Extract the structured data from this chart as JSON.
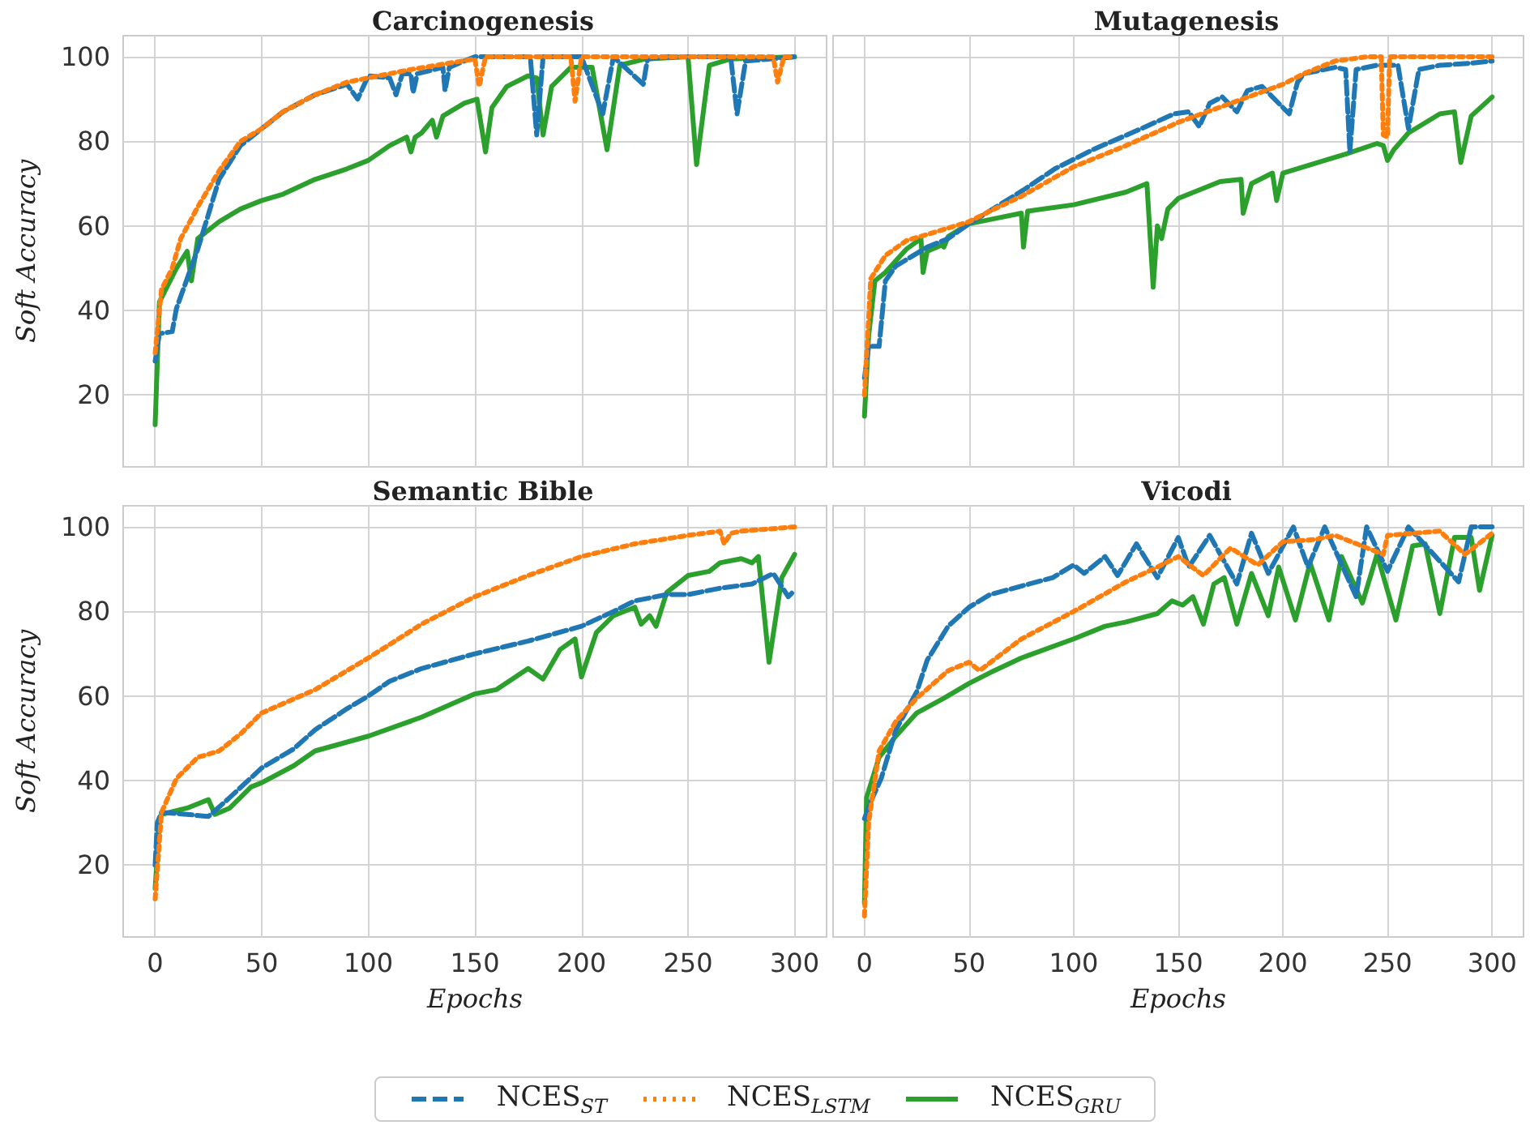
{
  "chart_data": [
    {
      "type": "line",
      "title": "Carcinogenesis",
      "ylabel": "Soft Accuracy",
      "xlim": [
        -15,
        315
      ],
      "ylim": [
        3,
        105
      ],
      "xticks": [
        0,
        50,
        100,
        150,
        200,
        250,
        300
      ],
      "yticks": [
        20,
        40,
        60,
        80,
        100
      ],
      "grid": true,
      "legend": "bottom",
      "tick_labels": "y",
      "series": [
        {
          "name": "NCES$_{ST}$",
          "color": "#1f77b4",
          "line_style": "dashed",
          "x": [
            0,
            2,
            8,
            10,
            20,
            30,
            40,
            50,
            60,
            75,
            90,
            95,
            100,
            110,
            113,
            116,
            120,
            121,
            123,
            135,
            136,
            138,
            145,
            150,
            176,
            179,
            182,
            200,
            210,
            215,
            229,
            231,
            240,
            270,
            273,
            277,
            300
          ],
          "values": [
            28,
            34.5,
            35,
            40.5,
            54.5,
            71,
            79,
            83,
            87,
            91,
            93.5,
            90,
            95.5,
            95,
            91,
            96,
            96,
            91.5,
            96,
            97.5,
            92,
            97.5,
            99,
            100,
            100,
            81.5,
            100,
            100,
            86.5,
            100,
            93.5,
            99.5,
            100,
            100,
            86.5,
            99,
            100
          ]
        },
        {
          "name": "NCES$_{LSTM}$",
          "color": "#ff7f0e",
          "line_style": "dotted",
          "x": [
            0,
            3,
            8,
            12,
            20,
            30,
            40,
            50,
            60,
            75,
            90,
            100,
            120,
            150,
            152,
            155,
            195,
            197,
            200,
            290,
            292,
            295,
            300
          ],
          "values": [
            30,
            45,
            50,
            57,
            64.5,
            73,
            80,
            83,
            87,
            91,
            94,
            95,
            97,
            99.5,
            93,
            100,
            100,
            89.5,
            100,
            100,
            94,
            100,
            100
          ]
        },
        {
          "name": "NCES$_{GRU}$",
          "color": "#2ca02c",
          "line_style": "solid",
          "x": [
            0,
            2,
            5,
            10,
            15,
            17,
            20,
            30,
            40,
            50,
            60,
            75,
            90,
            100,
            110,
            118,
            120,
            122,
            125,
            130,
            132,
            135,
            145,
            151,
            155,
            158,
            165,
            175,
            179,
            182,
            186,
            195,
            205,
            212,
            218,
            230,
            250,
            254,
            260,
            270,
            300
          ],
          "values": [
            13,
            42,
            45,
            50,
            54,
            47,
            57,
            61,
            64,
            66,
            67.5,
            71,
            73.5,
            75.5,
            79,
            81,
            77.5,
            81,
            82,
            85,
            81,
            86,
            89,
            90,
            77.5,
            88,
            93,
            95.5,
            95,
            81.5,
            93,
            97.5,
            97.5,
            78,
            98,
            99.5,
            100,
            74.5,
            98,
            99.5,
            100
          ]
        }
      ]
    },
    {
      "type": "line",
      "title": "Mutagenesis",
      "xlim": [
        -15,
        315
      ],
      "ylim": [
        3,
        105
      ],
      "xticks": [
        0,
        50,
        100,
        150,
        200,
        250,
        300
      ],
      "yticks": [
        20,
        40,
        60,
        80,
        100
      ],
      "grid": true,
      "tick_labels": false,
      "series": [
        {
          "color": "#1f77b4",
          "line_style": "dashed",
          "x": [
            0,
            2,
            7,
            10,
            15,
            30,
            40,
            50,
            76,
            91,
            109,
            130,
            148,
            155,
            160,
            165,
            171,
            178,
            183,
            190,
            203,
            207,
            210,
            225,
            230,
            232,
            235,
            245,
            255,
            260,
            265,
            275,
            290,
            300
          ],
          "values": [
            24,
            31.5,
            31.5,
            47,
            50.5,
            55,
            57,
            60.5,
            68.5,
            73.5,
            78,
            82.5,
            86.5,
            87,
            83.5,
            89,
            90.5,
            87,
            92,
            93,
            86.5,
            94,
            96,
            97.5,
            97,
            77.5,
            97,
            98,
            98,
            83,
            97,
            98,
            98.5,
            99
          ]
        },
        {
          "color": "#ff7f0e",
          "line_style": "dotted",
          "x": [
            0,
            3,
            10,
            20,
            30,
            50,
            60,
            75,
            100,
            125,
            150,
            175,
            200,
            210,
            225,
            240,
            247,
            248,
            250,
            251,
            300
          ],
          "values": [
            20,
            47.5,
            53,
            56.5,
            58,
            61,
            63.5,
            67,
            74,
            79,
            84.5,
            89,
            93.5,
            96,
            99,
            100,
            100,
            81.5,
            81,
            100,
            100
          ]
        },
        {
          "color": "#2ca02c",
          "line_style": "solid",
          "x": [
            0,
            2,
            5,
            10,
            20,
            27,
            28,
            30,
            37,
            38,
            40,
            50,
            60,
            75,
            76,
            78,
            100,
            125,
            135,
            138,
            140,
            142,
            145,
            150,
            170,
            180,
            181,
            185,
            195,
            197,
            200,
            220,
            230,
            245,
            248,
            250,
            253,
            260,
            275,
            282,
            285,
            290,
            300
          ],
          "values": [
            15,
            34,
            47,
            49,
            54.5,
            57,
            49,
            54,
            55.5,
            55,
            57.5,
            60.5,
            61.5,
            63,
            55,
            63.5,
            65,
            68,
            70,
            45.5,
            60,
            57,
            64,
            66.5,
            70.5,
            71,
            63,
            70,
            72.5,
            66,
            72.5,
            75.5,
            77,
            79.5,
            79,
            75.5,
            78,
            82,
            86.5,
            87,
            75,
            86,
            90.5
          ]
        }
      ]
    },
    {
      "type": "line",
      "title": "Semantic Bible",
      "xlabel": "Epochs",
      "ylabel": "Soft Accuracy",
      "xlim": [
        -15,
        315
      ],
      "ylim": [
        3,
        105
      ],
      "xticks": [
        0,
        50,
        100,
        150,
        200,
        250,
        300
      ],
      "yticks": [
        20,
        40,
        60,
        80,
        100
      ],
      "grid": true,
      "series": [
        {
          "color": "#1f77b4",
          "line_style": "dashed",
          "x": [
            0,
            1,
            3,
            15,
            25,
            35,
            50,
            65,
            75,
            90,
            100,
            110,
            125,
            150,
            175,
            200,
            215,
            225,
            240,
            250,
            265,
            280,
            290,
            297,
            300
          ],
          "values": [
            20,
            30,
            32.5,
            32,
            31.5,
            36,
            43,
            47.5,
            52,
            57,
            60,
            63.5,
            66.5,
            70,
            73,
            76.5,
            80,
            82.5,
            84,
            84,
            85.5,
            86.5,
            89,
            83.5,
            85
          ]
        },
        {
          "color": "#ff7f0e",
          "line_style": "dotted",
          "x": [
            0,
            3,
            10,
            20,
            30,
            40,
            50,
            75,
            100,
            125,
            150,
            175,
            200,
            225,
            250,
            265,
            267,
            270,
            275,
            300
          ],
          "values": [
            12,
            32.5,
            40.5,
            45.5,
            47,
            51,
            56,
            61.5,
            69,
            77,
            83.5,
            88.5,
            93,
            96,
            98,
            99,
            96,
            98.5,
            99,
            100
          ]
        },
        {
          "color": "#2ca02c",
          "line_style": "solid",
          "x": [
            0,
            2,
            3,
            15,
            25,
            28,
            35,
            45,
            50,
            65,
            75,
            100,
            125,
            150,
            160,
            175,
            182,
            190,
            197,
            200,
            207,
            215,
            225,
            228,
            232,
            235,
            240,
            250,
            260,
            265,
            275,
            280,
            283,
            288,
            294,
            300
          ],
          "values": [
            14.5,
            30,
            32,
            33.5,
            35.5,
            32,
            33.5,
            38.5,
            39.5,
            43.5,
            47,
            50.5,
            55,
            60.5,
            61.5,
            66.5,
            64,
            71,
            73.5,
            64.5,
            75,
            79,
            81,
            77,
            79,
            76.5,
            84.5,
            88.5,
            89.5,
            91.5,
            92.5,
            91.5,
            93,
            68,
            88,
            93.5
          ]
        }
      ]
    },
    {
      "type": "line",
      "title": "Vicodi",
      "xlabel": "Epochs",
      "xlim": [
        -15,
        315
      ],
      "ylim": [
        3,
        105
      ],
      "xticks": [
        0,
        50,
        100,
        150,
        200,
        250,
        300
      ],
      "yticks": [
        20,
        40,
        60,
        80,
        100
      ],
      "grid": true,
      "tick_labels": "x",
      "series": [
        {
          "color": "#1f77b4",
          "line_style": "dashed",
          "x": [
            0,
            3,
            8,
            15,
            25,
            30,
            40,
            50,
            60,
            75,
            90,
            100,
            105,
            115,
            121,
            130,
            140,
            150,
            155,
            165,
            178,
            185,
            193,
            205,
            212,
            220,
            235,
            240,
            250,
            260,
            284,
            290,
            300
          ],
          "values": [
            31,
            35,
            40.5,
            52,
            61,
            68.5,
            76.5,
            81,
            84,
            86,
            88,
            91,
            89,
            93,
            88.5,
            96,
            88,
            97.5,
            90.5,
            98,
            86.5,
            98.5,
            89,
            100,
            90.5,
            100,
            83.5,
            100,
            89.5,
            100,
            87,
            100,
            100
          ]
        },
        {
          "color": "#ff7f0e",
          "line_style": "dotted",
          "x": [
            0,
            2,
            7,
            15,
            25,
            40,
            50,
            55,
            75,
            100,
            125,
            140,
            150,
            162,
            175,
            188,
            200,
            215,
            225,
            248,
            250,
            275,
            287,
            300
          ],
          "values": [
            8,
            30,
            47,
            54,
            59.5,
            66,
            68,
            66,
            73.5,
            80,
            87,
            90.5,
            93,
            88.5,
            95,
            91,
            96.5,
            97,
            98,
            93.5,
            98,
            99,
            93.5,
            98.5
          ]
        },
        {
          "color": "#2ca02c",
          "line_style": "solid",
          "x": [
            0,
            1,
            7,
            15,
            25,
            38,
            50,
            62,
            75,
            100,
            115,
            125,
            140,
            147,
            152,
            157,
            162,
            167,
            172,
            178,
            185,
            193,
            198,
            206,
            213,
            222,
            228,
            238,
            245,
            254,
            262,
            268,
            275,
            282,
            290,
            294,
            300
          ],
          "values": [
            11,
            36,
            45.5,
            50.5,
            56,
            59.5,
            63,
            66,
            69,
            73.5,
            76.5,
            77.5,
            79.5,
            82.5,
            81.5,
            83.5,
            77,
            86.5,
            88,
            77,
            89,
            79,
            90.5,
            78,
            91.5,
            78,
            93,
            82,
            93.5,
            78,
            95.5,
            96,
            79.5,
            97.5,
            97.5,
            85,
            98
          ]
        }
      ]
    }
  ]
}
